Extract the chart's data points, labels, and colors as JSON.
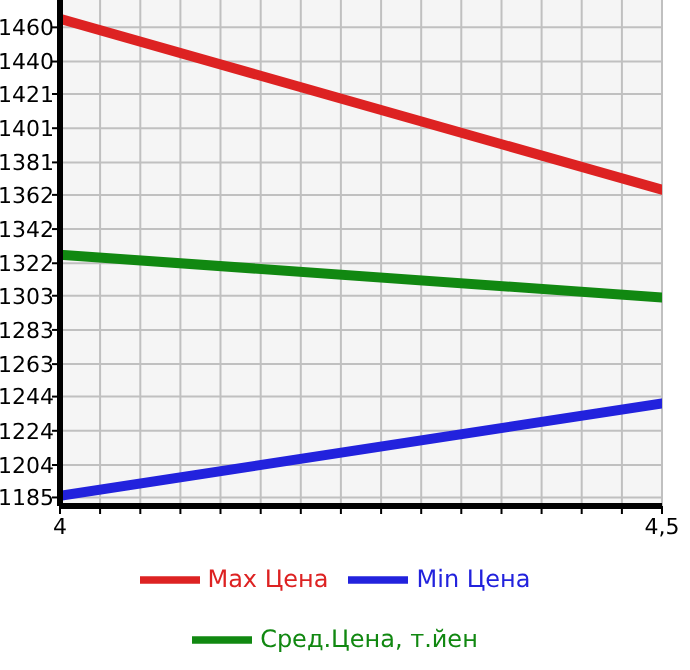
{
  "chart_data": {
    "type": "line",
    "x": [
      4,
      4.5
    ],
    "series": [
      {
        "name": "Max Цена",
        "color": "#dd2222",
        "values": [
          1465,
          1365
        ]
      },
      {
        "name": "Min Цена",
        "color": "#2222dd",
        "values": [
          1186,
          1240
        ]
      },
      {
        "name": "Сред.Цена, т.йен",
        "color": "#118811",
        "values": [
          1327,
          1302
        ]
      }
    ],
    "xlim": [
      4,
      4.5
    ],
    "xticks": [
      4,
      {
        "value": 4.0333,
        "label": null
      },
      {
        "value": 4.0667,
        "label": null
      },
      {
        "value": 4.1,
        "label": null
      },
      {
        "value": 4.1333,
        "label": null
      },
      {
        "value": 4.1667,
        "label": null
      },
      {
        "value": 4.2,
        "label": null
      },
      {
        "value": 4.2333,
        "label": null
      },
      {
        "value": 4.2667,
        "label": null
      },
      {
        "value": 4.3,
        "label": null
      },
      {
        "value": 4.3333,
        "label": null
      },
      {
        "value": 4.3667,
        "label": null
      },
      {
        "value": 4.4,
        "label": null
      },
      {
        "value": 4.4333,
        "label": null
      },
      {
        "value": 4.4667,
        "label": null
      },
      {
        "value": 4.5,
        "label": "4,5"
      }
    ],
    "ylim": [
      1180,
      1476
    ],
    "yticks": [
      1185,
      1204,
      1224,
      1244,
      1263,
      1283,
      1303,
      1322,
      1342,
      1362,
      1381,
      1401,
      1421,
      1440,
      1460
    ],
    "grid": true,
    "legend": "bottom",
    "marker": "none",
    "line_style": "solid"
  }
}
